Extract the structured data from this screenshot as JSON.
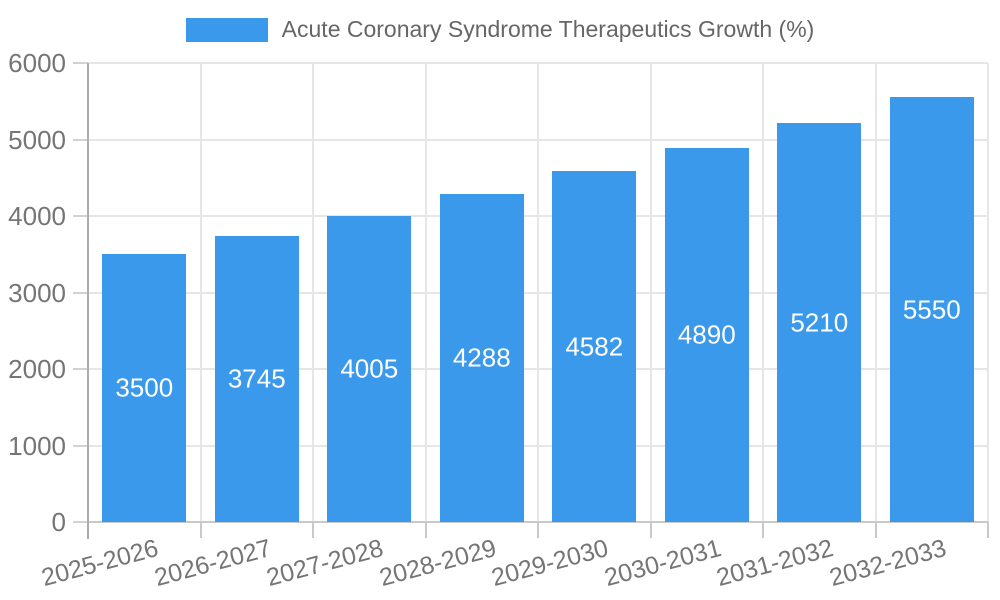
{
  "legend": {
    "items": [
      {
        "label": "Acute Coronary Syndrome Therapeutics Growth (%)",
        "color": "#3B99EC"
      }
    ]
  },
  "chart_data": {
    "type": "bar",
    "title": "Acute Coronary Syndrome Therapeutics Growth (%)",
    "categories": [
      "2025-2026",
      "2026-2027",
      "2027-2028",
      "2028-2029",
      "2029-2030",
      "2030-2031",
      "2031-2032",
      "2032-2033"
    ],
    "values": [
      3500,
      3745,
      4005,
      4288,
      4582,
      4890,
      5210,
      5550
    ],
    "series": [
      {
        "name": "Acute Coronary Syndrome Therapeutics Growth (%)",
        "values": [
          3500,
          3745,
          4005,
          4288,
          4582,
          4890,
          5210,
          5550
        ]
      }
    ],
    "xlabel": "",
    "ylabel": "",
    "ylim": [
      0,
      6000
    ],
    "yticks": [
      0,
      1000,
      2000,
      3000,
      4000,
      5000,
      6000
    ],
    "grid": true,
    "legend_position": "top",
    "bar_color": "#3B99EC",
    "value_label_color": "#FFFFFF",
    "tick_label_color": "#757575",
    "gridline_color": "#E6E6E6",
    "axis_line_color": "#ACACAC",
    "background_color": "#FFFFFF",
    "x_label_rotation_deg": -15
  }
}
